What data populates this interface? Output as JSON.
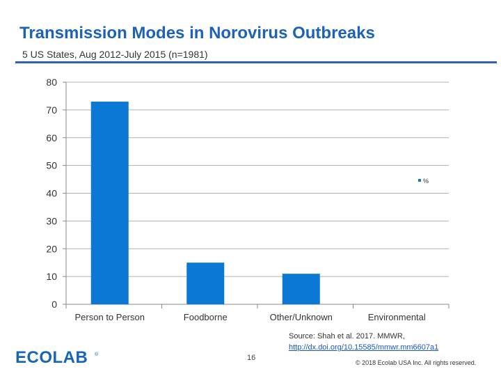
{
  "header": {
    "title": "Transmission Modes in Norovirus Outbreaks",
    "subtitle": "5 US States, Aug 2012-July 2015 (n=1981)"
  },
  "chart_data": {
    "type": "bar",
    "categories": [
      "Person to Person",
      "Foodborne",
      "Other/Unknown",
      "Environmental"
    ],
    "series": [
      {
        "name": "%",
        "values": [
          73,
          15,
          11,
          0
        ]
      }
    ],
    "ylim": [
      0,
      80
    ],
    "yticks": [
      "0",
      "10",
      "20",
      "30",
      "40",
      "50",
      "60",
      "70",
      "80"
    ],
    "grid": true,
    "legend": "right",
    "bar_color": "#0c78d6"
  },
  "footer": {
    "source_line1": "Source: Shah  et al. 2017. MMWR,",
    "source_link": "http://dx.doi.org/10.15585/mmwr.mm6607a1",
    "page_number": "16",
    "copyright": "© 2018 Ecolab USA Inc. All rights reserved.",
    "logo_text": "ECOLAB",
    "logo_color": "#1565b8"
  }
}
